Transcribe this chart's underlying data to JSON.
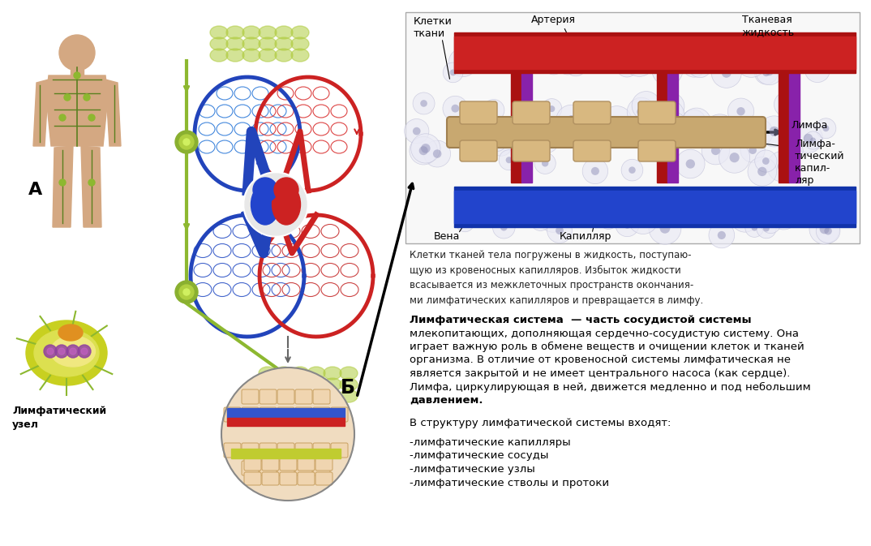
{
  "bg_color": "#ffffff",
  "fig_width": 10.74,
  "fig_height": 6.73,
  "dpi": 100,
  "left_label_A": "А",
  "left_label_B": "Б",
  "lymph_node_label": "Лимфатический\nузел",
  "top_right_labels": {
    "kletki_tkani": "Клетки\nткани",
    "arteriya": "Артерия",
    "tkanevaya_zhidkost": "Тканевая\nжидкость",
    "limfa": "Лимфа",
    "limfatichesky_kapillyar": "Лимфа-\nтический\nкапил-\nляр",
    "vena": "Вена",
    "kapillyar": "Капилляр"
  },
  "caption_top_right": "Клетки тканей тела погружены в жидкость, поступаю-\nщую из кровеносных капилляров. Избыток жидкости\nвсасывается из межклеточных пространств окончания-\nми лимфатических капилляров и превращается в лимфу.",
  "main_text_line1": "Лимфатическая система  — часть сосудистой системы",
  "main_text_line2": "млекопитающих, дополняющая сердечно-сосудистую систему. Она",
  "main_text_line3": "играет важную роль в обмене веществ и очищении клеток и тканей",
  "main_text_line4": "организма. В отличие от кровеносной системы лимфатическая не",
  "main_text_line5": "является закрытой и не имеет центрального насоса (как сердце).",
  "main_text_line6": "Лимфа, циркулирующая в ней, движется медленно и под небольшим",
  "main_text_line7": "давлением.",
  "struct_title": "В структуру лимфатической системы входят:",
  "struct_items": [
    "-лимфатические капилляры",
    "-лимфатические сосуды",
    "-лимфатические узлы",
    "-лимфатические стволы и протоки"
  ]
}
